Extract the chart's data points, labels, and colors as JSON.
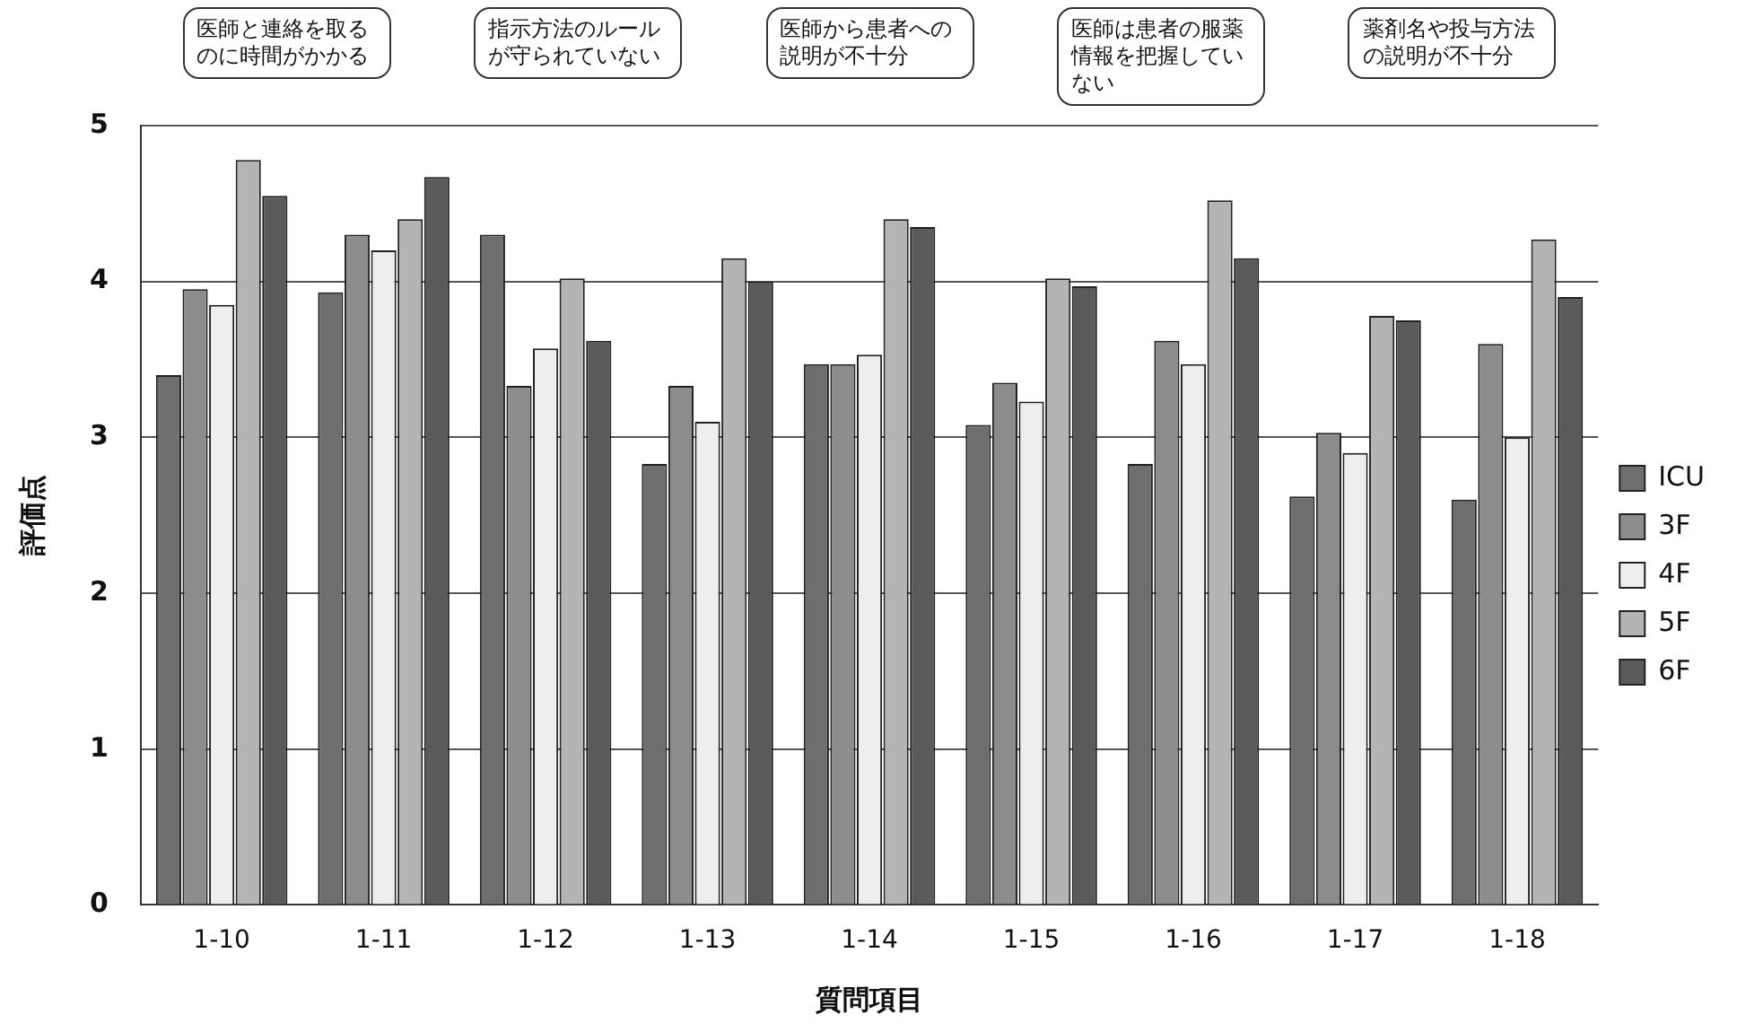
{
  "chart_data": {
    "type": "bar",
    "xlabel": "質問項目",
    "ylabel": "評価点",
    "categories": [
      "1-10",
      "1-11",
      "1-12",
      "1-13",
      "1-14",
      "1-15",
      "1-16",
      "1-17",
      "1-18"
    ],
    "series": [
      {
        "name": "ICU",
        "color": "#6e6e6e",
        "values": [
          3.4,
          3.93,
          4.3,
          2.83,
          3.47,
          3.08,
          2.83,
          2.62,
          2.6
        ]
      },
      {
        "name": "3F",
        "color": "#8c8c8c",
        "values": [
          3.95,
          4.3,
          3.33,
          3.33,
          3.47,
          3.35,
          3.62,
          3.03,
          3.6
        ]
      },
      {
        "name": "4F",
        "color": "#eeeeee",
        "values": [
          3.85,
          4.2,
          3.57,
          3.1,
          3.53,
          3.23,
          3.47,
          2.9,
          3.0
        ]
      },
      {
        "name": "5F",
        "color": "#b4b4b4",
        "values": [
          4.78,
          4.4,
          4.02,
          4.15,
          4.4,
          4.02,
          4.52,
          3.78,
          4.27
        ]
      },
      {
        "name": "6F",
        "color": "#5a5a5a",
        "values": [
          4.55,
          4.67,
          3.62,
          4.0,
          4.35,
          3.97,
          4.15,
          3.75,
          3.9
        ]
      }
    ],
    "ylim": [
      0,
      5
    ],
    "yticks": [
      0,
      1,
      2,
      3,
      4,
      5
    ],
    "grid": "y",
    "legend": "right",
    "annotations": [
      "医師と連絡を取るのに時間がかかる",
      "指示方法のルールが守られていない",
      "医師から患者への説明が不十分",
      "医師は患者の服薬情報を把握していない",
      "薬剤名や投与方法の説明が不十分"
    ]
  }
}
